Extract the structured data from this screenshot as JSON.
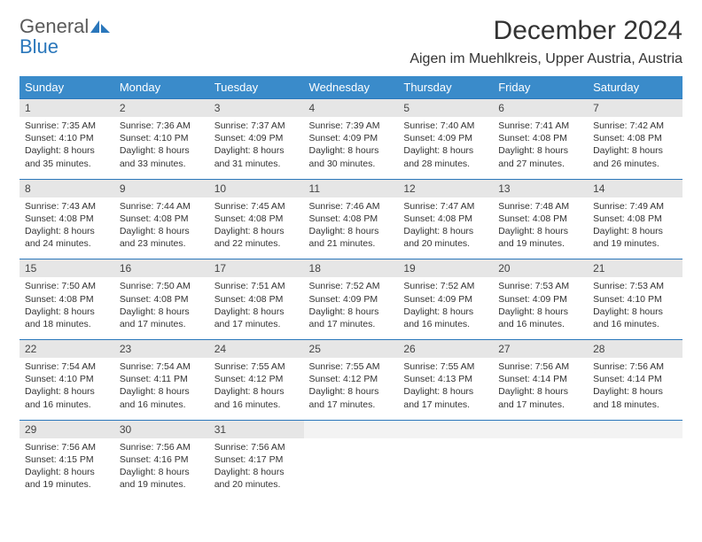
{
  "brand": {
    "part1": "General",
    "part2": "Blue"
  },
  "colors": {
    "header_bg": "#3a8bca",
    "week_border": "#2a77bb",
    "daynum_bg": "#e6e6e6",
    "text": "#333333",
    "logo_gray": "#5a5a5a"
  },
  "title": "December 2024",
  "location": "Aigen im Muehlkreis, Upper Austria, Austria",
  "days_of_week": [
    "Sunday",
    "Monday",
    "Tuesday",
    "Wednesday",
    "Thursday",
    "Friday",
    "Saturday"
  ],
  "weeks": [
    [
      {
        "n": "1",
        "sr": "Sunrise: 7:35 AM",
        "ss": "Sunset: 4:10 PM",
        "d1": "Daylight: 8 hours",
        "d2": "and 35 minutes."
      },
      {
        "n": "2",
        "sr": "Sunrise: 7:36 AM",
        "ss": "Sunset: 4:10 PM",
        "d1": "Daylight: 8 hours",
        "d2": "and 33 minutes."
      },
      {
        "n": "3",
        "sr": "Sunrise: 7:37 AM",
        "ss": "Sunset: 4:09 PM",
        "d1": "Daylight: 8 hours",
        "d2": "and 31 minutes."
      },
      {
        "n": "4",
        "sr": "Sunrise: 7:39 AM",
        "ss": "Sunset: 4:09 PM",
        "d1": "Daylight: 8 hours",
        "d2": "and 30 minutes."
      },
      {
        "n": "5",
        "sr": "Sunrise: 7:40 AM",
        "ss": "Sunset: 4:09 PM",
        "d1": "Daylight: 8 hours",
        "d2": "and 28 minutes."
      },
      {
        "n": "6",
        "sr": "Sunrise: 7:41 AM",
        "ss": "Sunset: 4:08 PM",
        "d1": "Daylight: 8 hours",
        "d2": "and 27 minutes."
      },
      {
        "n": "7",
        "sr": "Sunrise: 7:42 AM",
        "ss": "Sunset: 4:08 PM",
        "d1": "Daylight: 8 hours",
        "d2": "and 26 minutes."
      }
    ],
    [
      {
        "n": "8",
        "sr": "Sunrise: 7:43 AM",
        "ss": "Sunset: 4:08 PM",
        "d1": "Daylight: 8 hours",
        "d2": "and 24 minutes."
      },
      {
        "n": "9",
        "sr": "Sunrise: 7:44 AM",
        "ss": "Sunset: 4:08 PM",
        "d1": "Daylight: 8 hours",
        "d2": "and 23 minutes."
      },
      {
        "n": "10",
        "sr": "Sunrise: 7:45 AM",
        "ss": "Sunset: 4:08 PM",
        "d1": "Daylight: 8 hours",
        "d2": "and 22 minutes."
      },
      {
        "n": "11",
        "sr": "Sunrise: 7:46 AM",
        "ss": "Sunset: 4:08 PM",
        "d1": "Daylight: 8 hours",
        "d2": "and 21 minutes."
      },
      {
        "n": "12",
        "sr": "Sunrise: 7:47 AM",
        "ss": "Sunset: 4:08 PM",
        "d1": "Daylight: 8 hours",
        "d2": "and 20 minutes."
      },
      {
        "n": "13",
        "sr": "Sunrise: 7:48 AM",
        "ss": "Sunset: 4:08 PM",
        "d1": "Daylight: 8 hours",
        "d2": "and 19 minutes."
      },
      {
        "n": "14",
        "sr": "Sunrise: 7:49 AM",
        "ss": "Sunset: 4:08 PM",
        "d1": "Daylight: 8 hours",
        "d2": "and 19 minutes."
      }
    ],
    [
      {
        "n": "15",
        "sr": "Sunrise: 7:50 AM",
        "ss": "Sunset: 4:08 PM",
        "d1": "Daylight: 8 hours",
        "d2": "and 18 minutes."
      },
      {
        "n": "16",
        "sr": "Sunrise: 7:50 AM",
        "ss": "Sunset: 4:08 PM",
        "d1": "Daylight: 8 hours",
        "d2": "and 17 minutes."
      },
      {
        "n": "17",
        "sr": "Sunrise: 7:51 AM",
        "ss": "Sunset: 4:08 PM",
        "d1": "Daylight: 8 hours",
        "d2": "and 17 minutes."
      },
      {
        "n": "18",
        "sr": "Sunrise: 7:52 AM",
        "ss": "Sunset: 4:09 PM",
        "d1": "Daylight: 8 hours",
        "d2": "and 17 minutes."
      },
      {
        "n": "19",
        "sr": "Sunrise: 7:52 AM",
        "ss": "Sunset: 4:09 PM",
        "d1": "Daylight: 8 hours",
        "d2": "and 16 minutes."
      },
      {
        "n": "20",
        "sr": "Sunrise: 7:53 AM",
        "ss": "Sunset: 4:09 PM",
        "d1": "Daylight: 8 hours",
        "d2": "and 16 minutes."
      },
      {
        "n": "21",
        "sr": "Sunrise: 7:53 AM",
        "ss": "Sunset: 4:10 PM",
        "d1": "Daylight: 8 hours",
        "d2": "and 16 minutes."
      }
    ],
    [
      {
        "n": "22",
        "sr": "Sunrise: 7:54 AM",
        "ss": "Sunset: 4:10 PM",
        "d1": "Daylight: 8 hours",
        "d2": "and 16 minutes."
      },
      {
        "n": "23",
        "sr": "Sunrise: 7:54 AM",
        "ss": "Sunset: 4:11 PM",
        "d1": "Daylight: 8 hours",
        "d2": "and 16 minutes."
      },
      {
        "n": "24",
        "sr": "Sunrise: 7:55 AM",
        "ss": "Sunset: 4:12 PM",
        "d1": "Daylight: 8 hours",
        "d2": "and 16 minutes."
      },
      {
        "n": "25",
        "sr": "Sunrise: 7:55 AM",
        "ss": "Sunset: 4:12 PM",
        "d1": "Daylight: 8 hours",
        "d2": "and 17 minutes."
      },
      {
        "n": "26",
        "sr": "Sunrise: 7:55 AM",
        "ss": "Sunset: 4:13 PM",
        "d1": "Daylight: 8 hours",
        "d2": "and 17 minutes."
      },
      {
        "n": "27",
        "sr": "Sunrise: 7:56 AM",
        "ss": "Sunset: 4:14 PM",
        "d1": "Daylight: 8 hours",
        "d2": "and 17 minutes."
      },
      {
        "n": "28",
        "sr": "Sunrise: 7:56 AM",
        "ss": "Sunset: 4:14 PM",
        "d1": "Daylight: 8 hours",
        "d2": "and 18 minutes."
      }
    ],
    [
      {
        "n": "29",
        "sr": "Sunrise: 7:56 AM",
        "ss": "Sunset: 4:15 PM",
        "d1": "Daylight: 8 hours",
        "d2": "and 19 minutes."
      },
      {
        "n": "30",
        "sr": "Sunrise: 7:56 AM",
        "ss": "Sunset: 4:16 PM",
        "d1": "Daylight: 8 hours",
        "d2": "and 19 minutes."
      },
      {
        "n": "31",
        "sr": "Sunrise: 7:56 AM",
        "ss": "Sunset: 4:17 PM",
        "d1": "Daylight: 8 hours",
        "d2": "and 20 minutes."
      },
      {
        "empty": true
      },
      {
        "empty": true
      },
      {
        "empty": true
      },
      {
        "empty": true
      }
    ]
  ]
}
